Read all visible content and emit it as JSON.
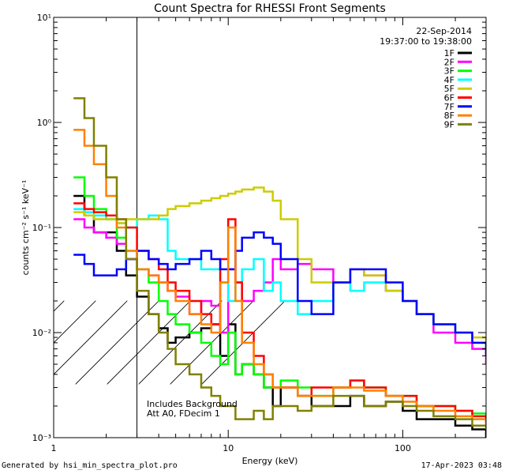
{
  "chart_data": {
    "type": "line",
    "title": "Count Spectra for RHESSI Front Segments",
    "xlabel": "Energy (keV)",
    "ylabel": "counts cm⁻² s⁻¹ keV⁻¹",
    "xscale": "log",
    "yscale": "log",
    "xlim": [
      1,
      300
    ],
    "ylim": [
      0.001,
      10
    ],
    "x_ticks": [
      {
        "value": 1,
        "label": "1"
      },
      {
        "value": 10,
        "label": "10"
      },
      {
        "value": 100,
        "label": "100"
      }
    ],
    "y_ticks": [
      {
        "value": 0.001,
        "label": "10⁻³"
      },
      {
        "value": 0.01,
        "label": "10⁻²"
      },
      {
        "value": 0.1,
        "label": "10⁻¹"
      },
      {
        "value": 1,
        "label": "10⁰"
      },
      {
        "value": 10,
        "label": "10¹"
      }
    ],
    "grid": false,
    "hatched_region": [
      1,
      3
    ],
    "date": "22-Sep-2014",
    "time_range": "19:37:00 to 19:38:00",
    "legend_position": "top-right",
    "annotations": [
      "Includes Background",
      "Att A0, FDecim 1"
    ],
    "series": [
      {
        "name": "1F",
        "color": "#000000",
        "x": [
          1.3,
          1.5,
          1.7,
          2.0,
          2.3,
          2.6,
          3.0,
          3.5,
          4.0,
          4.5,
          5.0,
          6.0,
          7.0,
          8.0,
          9.0,
          10.0,
          11.0,
          12.0,
          14.0,
          16.0,
          18.0,
          20.0,
          25.0,
          30.0,
          40.0,
          50.0,
          60.0,
          80.0,
          100.0,
          120.0,
          150.0,
          200.0,
          250.0,
          300.0
        ],
        "y": [
          0.2,
          0.13,
          0.09,
          0.09,
          0.06,
          0.035,
          0.022,
          0.015,
          0.011,
          0.008,
          0.009,
          0.01,
          0.011,
          0.012,
          0.006,
          0.012,
          0.004,
          0.005,
          0.004,
          0.003,
          0.002,
          0.003,
          0.0025,
          0.002,
          0.002,
          0.0025,
          0.002,
          0.0022,
          0.0018,
          0.0015,
          0.0015,
          0.0013,
          0.0012,
          0.001
        ]
      },
      {
        "name": "2F",
        "color": "#ff00ff",
        "x": [
          1.3,
          1.5,
          1.7,
          2.0,
          2.3,
          2.6,
          3.0,
          3.5,
          4.0,
          4.5,
          5.0,
          6.0,
          7.0,
          8.0,
          9.0,
          10.0,
          11.0,
          12.0,
          14.0,
          16.0,
          18.0,
          20.0,
          25.0,
          30.0,
          40.0,
          50.0,
          60.0,
          80.0,
          100.0,
          120.0,
          150.0,
          200.0,
          250.0,
          300.0
        ],
        "y": [
          0.12,
          0.1,
          0.09,
          0.08,
          0.07,
          0.05,
          0.04,
          0.035,
          0.03,
          0.025,
          0.022,
          0.015,
          0.02,
          0.018,
          0.01,
          0.04,
          0.03,
          0.02,
          0.025,
          0.03,
          0.05,
          0.04,
          0.045,
          0.04,
          0.03,
          0.04,
          0.035,
          0.025,
          0.02,
          0.015,
          0.01,
          0.008,
          0.007,
          0.005
        ]
      },
      {
        "name": "3F",
        "color": "#00ff00",
        "x": [
          1.3,
          1.5,
          1.7,
          2.0,
          2.3,
          2.6,
          3.0,
          3.5,
          4.0,
          4.5,
          5.0,
          6.0,
          7.0,
          8.0,
          9.0,
          10.0,
          11.0,
          12.0,
          14.0,
          16.0,
          18.0,
          20.0,
          25.0,
          30.0,
          40.0,
          50.0,
          60.0,
          80.0,
          100.0,
          120.0,
          150.0,
          200.0,
          250.0,
          300.0
        ],
        "y": [
          0.3,
          0.2,
          0.15,
          0.12,
          0.08,
          0.06,
          0.04,
          0.03,
          0.02,
          0.015,
          0.012,
          0.01,
          0.008,
          0.006,
          0.005,
          0.01,
          0.004,
          0.005,
          0.004,
          0.003,
          0.003,
          0.0035,
          0.003,
          0.0025,
          0.003,
          0.0035,
          0.003,
          0.0025,
          0.0025,
          0.002,
          0.002,
          0.0018,
          0.0017,
          0.0015
        ]
      },
      {
        "name": "4F",
        "color": "#00ffff",
        "x": [
          1.3,
          1.5,
          1.7,
          2.0,
          2.3,
          2.6,
          3.0,
          3.5,
          4.0,
          4.5,
          5.0,
          6.0,
          7.0,
          8.0,
          9.0,
          10.0,
          11.0,
          12.0,
          14.0,
          16.0,
          18.0,
          20.0,
          25.0,
          30.0,
          40.0,
          50.0,
          60.0,
          80.0,
          100.0,
          120.0,
          150.0,
          200.0,
          250.0,
          300.0
        ],
        "y": [
          0.15,
          0.14,
          0.13,
          0.12,
          0.11,
          0.1,
          0.12,
          0.13,
          0.12,
          0.06,
          0.05,
          0.05,
          0.04,
          0.04,
          0.03,
          0.02,
          0.03,
          0.04,
          0.05,
          0.025,
          0.03,
          0.02,
          0.015,
          0.02,
          0.03,
          0.025,
          0.03,
          0.025,
          0.02,
          0.015,
          0.012,
          0.01,
          0.008,
          0.007
        ]
      },
      {
        "name": "5F",
        "color": "#cccc00",
        "x": [
          1.3,
          1.5,
          1.7,
          2.0,
          2.3,
          2.6,
          3.0,
          3.5,
          4.0,
          4.5,
          5.0,
          6.0,
          7.0,
          8.0,
          9.0,
          10.0,
          11.0,
          12.0,
          14.0,
          16.0,
          18.0,
          20.0,
          25.0,
          30.0,
          40.0,
          50.0,
          60.0,
          80.0,
          100.0,
          120.0,
          150.0,
          200.0,
          250.0,
          300.0
        ],
        "y": [
          0.14,
          0.13,
          0.12,
          0.12,
          0.11,
          0.12,
          0.12,
          0.12,
          0.13,
          0.15,
          0.16,
          0.17,
          0.18,
          0.19,
          0.2,
          0.21,
          0.22,
          0.23,
          0.24,
          0.22,
          0.18,
          0.12,
          0.05,
          0.03,
          0.03,
          0.04,
          0.035,
          0.025,
          0.02,
          0.015,
          0.012,
          0.01,
          0.009,
          0.008
        ]
      },
      {
        "name": "6F",
        "color": "#ff0000",
        "x": [
          1.3,
          1.5,
          1.7,
          2.0,
          2.3,
          2.6,
          3.0,
          3.5,
          4.0,
          4.5,
          5.0,
          6.0,
          7.0,
          8.0,
          9.0,
          10.0,
          11.0,
          12.0,
          14.0,
          16.0,
          18.0,
          20.0,
          25.0,
          30.0,
          40.0,
          50.0,
          60.0,
          80.0,
          100.0,
          120.0,
          150.0,
          200.0,
          250.0,
          300.0
        ],
        "y": [
          0.17,
          0.15,
          0.14,
          0.13,
          0.12,
          0.1,
          0.06,
          0.05,
          0.04,
          0.03,
          0.025,
          0.02,
          0.015,
          0.012,
          0.05,
          0.12,
          0.03,
          0.01,
          0.006,
          0.004,
          0.003,
          0.003,
          0.0025,
          0.003,
          0.003,
          0.0035,
          0.003,
          0.0025,
          0.0025,
          0.002,
          0.002,
          0.0018,
          0.0016,
          0.0014
        ]
      },
      {
        "name": "7F",
        "color": "#0000ff",
        "x": [
          1.3,
          1.5,
          1.7,
          2.0,
          2.3,
          2.6,
          3.0,
          3.5,
          4.0,
          4.5,
          5.0,
          6.0,
          7.0,
          8.0,
          9.0,
          10.0,
          11.0,
          12.0,
          14.0,
          16.0,
          18.0,
          20.0,
          25.0,
          30.0,
          40.0,
          50.0,
          60.0,
          80.0,
          100.0,
          120.0,
          150.0,
          200.0,
          250.0,
          300.0
        ],
        "y": [
          0.055,
          0.045,
          0.035,
          0.035,
          0.04,
          0.05,
          0.06,
          0.05,
          0.045,
          0.04,
          0.045,
          0.05,
          0.06,
          0.05,
          0.04,
          0.04,
          0.06,
          0.08,
          0.09,
          0.08,
          0.07,
          0.05,
          0.02,
          0.015,
          0.03,
          0.04,
          0.04,
          0.03,
          0.02,
          0.015,
          0.012,
          0.01,
          0.008,
          0.006
        ]
      },
      {
        "name": "8F",
        "color": "#ff8000",
        "x": [
          1.3,
          1.5,
          1.7,
          2.0,
          2.3,
          2.6,
          3.0,
          3.5,
          4.0,
          4.5,
          5.0,
          6.0,
          7.0,
          8.0,
          9.0,
          10.0,
          11.0,
          12.0,
          14.0,
          16.0,
          18.0,
          20.0,
          25.0,
          30.0,
          40.0,
          50.0,
          60.0,
          80.0,
          100.0,
          120.0,
          150.0,
          200.0,
          250.0,
          300.0
        ],
        "y": [
          0.85,
          0.6,
          0.4,
          0.2,
          0.1,
          0.06,
          0.04,
          0.035,
          0.03,
          0.025,
          0.02,
          0.015,
          0.012,
          0.01,
          0.03,
          0.1,
          0.02,
          0.008,
          0.005,
          0.004,
          0.003,
          0.003,
          0.0025,
          0.0025,
          0.003,
          0.003,
          0.0028,
          0.0025,
          0.0022,
          0.002,
          0.0018,
          0.0016,
          0.0015,
          0.0013
        ]
      },
      {
        "name": "9F",
        "color": "#808000",
        "x": [
          1.3,
          1.5,
          1.7,
          2.0,
          2.3,
          2.6,
          3.0,
          3.5,
          4.0,
          4.5,
          5.0,
          6.0,
          7.0,
          8.0,
          9.0,
          10.0,
          11.0,
          12.0,
          14.0,
          16.0,
          18.0,
          20.0,
          25.0,
          30.0,
          40.0,
          50.0,
          60.0,
          80.0,
          100.0,
          120.0,
          150.0,
          200.0,
          250.0,
          300.0
        ],
        "y": [
          1.7,
          1.1,
          0.6,
          0.3,
          0.12,
          0.05,
          0.025,
          0.015,
          0.01,
          0.007,
          0.005,
          0.004,
          0.003,
          0.0025,
          0.002,
          0.002,
          0.0015,
          0.0015,
          0.0018,
          0.0015,
          0.002,
          0.002,
          0.0018,
          0.002,
          0.0025,
          0.0025,
          0.002,
          0.0022,
          0.002,
          0.0018,
          0.0016,
          0.0015,
          0.0013,
          0.0012
        ]
      }
    ]
  },
  "footer": {
    "left": "Generated by hsi_min_spectra_plot.pro",
    "right": "17-Apr-2023 03:48"
  }
}
